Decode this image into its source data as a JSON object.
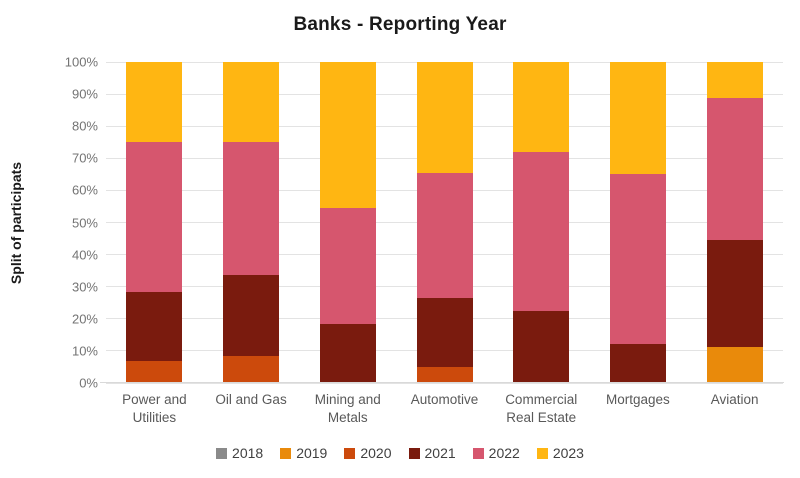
{
  "chart_data": {
    "type": "bar",
    "subtype": "stacked-100-percent",
    "title": "Banks - Reporting Year",
    "ylabel": "Split of participats",
    "xlabel": "",
    "categories": [
      "Power and Utilities",
      "Oil and Gas",
      "Mining and Metals",
      "Automotive",
      "Commercial Real Estate",
      "Mortgages",
      "Aviation"
    ],
    "series": [
      {
        "name": "2018",
        "color": "#8a8a8a",
        "values": [
          0,
          0,
          0,
          0,
          0,
          0,
          0
        ]
      },
      {
        "name": "2019",
        "color": "#e98a0b",
        "values": [
          0,
          0,
          0,
          0,
          0,
          0,
          11.1
        ]
      },
      {
        "name": "2020",
        "color": "#cc4a0c",
        "values": [
          7,
          8.5,
          0,
          5,
          0,
          0,
          0
        ]
      },
      {
        "name": "2021",
        "color": "#7a1b0e",
        "values": [
          21.5,
          25,
          18.5,
          21.5,
          22.5,
          12,
          33.4
        ]
      },
      {
        "name": "2022",
        "color": "#d6566e",
        "values": [
          46.5,
          41.5,
          36,
          39,
          49.5,
          53,
          44.4
        ]
      },
      {
        "name": "2023",
        "color": "#ffb612",
        "values": [
          25,
          25,
          45.5,
          34.5,
          28,
          35,
          11.1
        ]
      }
    ],
    "yticks": [
      "0%",
      "10%",
      "20%",
      "30%",
      "40%",
      "50%",
      "60%",
      "70%",
      "80%",
      "90%",
      "100%"
    ],
    "ylim": [
      0,
      100
    ],
    "grid": true,
    "legend_position": "bottom"
  },
  "style": {
    "grid_color": "#e3e3e3",
    "tick_text_color": "#737373",
    "category_text_color": "#595959",
    "legend_text_color": "#404040",
    "title_color": "#1a1a1a"
  }
}
